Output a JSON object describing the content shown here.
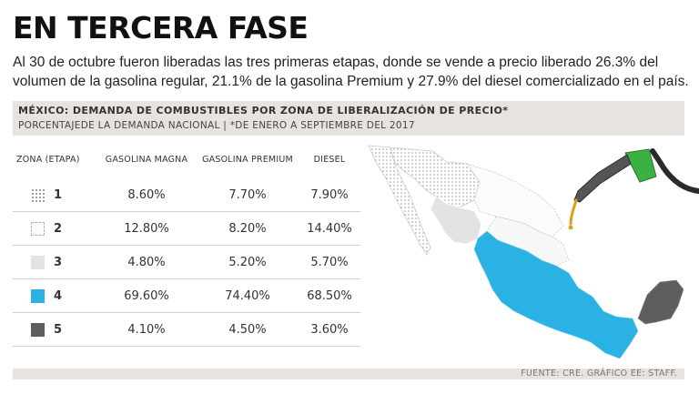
{
  "title": "EN TERCERA FASE",
  "subtitle": "Al 30 de octubre fueron liberadas las tres primeras etapas, donde se vende a precio liberado 26.3% del volumen de la gasolina regular, 21.1% de la gasolina Premium y 27.9% del diesel comercializado en el país.",
  "chart": {
    "title": "MÉXICO: DEMANDA DE COMBUSTIBLES POR ZONA DE LIBERALIZACIÓN DE PRECIO*",
    "subtitle": "PORCENTAJEDE LA DEMANDA NACIONAL | *DE ENERO A SEPTIEMBRE DEL 2017"
  },
  "table": {
    "headers": [
      "ZONA (ETAPA)",
      "GASOLINA MAGNA",
      "GASOLINA PREMIUM",
      "DIESEL"
    ],
    "rows": [
      {
        "zone": "1",
        "magna": "8.60%",
        "premium": "7.70%",
        "diesel": "7.90%"
      },
      {
        "zone": "2",
        "magna": "12.80%",
        "premium": "8.20%",
        "diesel": "14.40%"
      },
      {
        "zone": "3",
        "magna": "4.80%",
        "premium": "5.20%",
        "diesel": "5.70%"
      },
      {
        "zone": "4",
        "magna": "69.60%",
        "premium": "74.40%",
        "diesel": "68.50%"
      },
      {
        "zone": "5",
        "magna": "4.10%",
        "premium": "4.50%",
        "diesel": "3.60%"
      }
    ]
  },
  "colors": {
    "zone1": "#ffffff",
    "zone2": "#fbfbfb",
    "zone3": "#e3e3e3",
    "zone4": "#2ab2e4",
    "zone5": "#5e5e5e",
    "nozzle": "#3bb143"
  },
  "icons": [
    "mexico-map-icon",
    "fuel-nozzle-icon"
  ],
  "source": "FUENTE: CRE. GRÁFICO EE: STAFF."
}
